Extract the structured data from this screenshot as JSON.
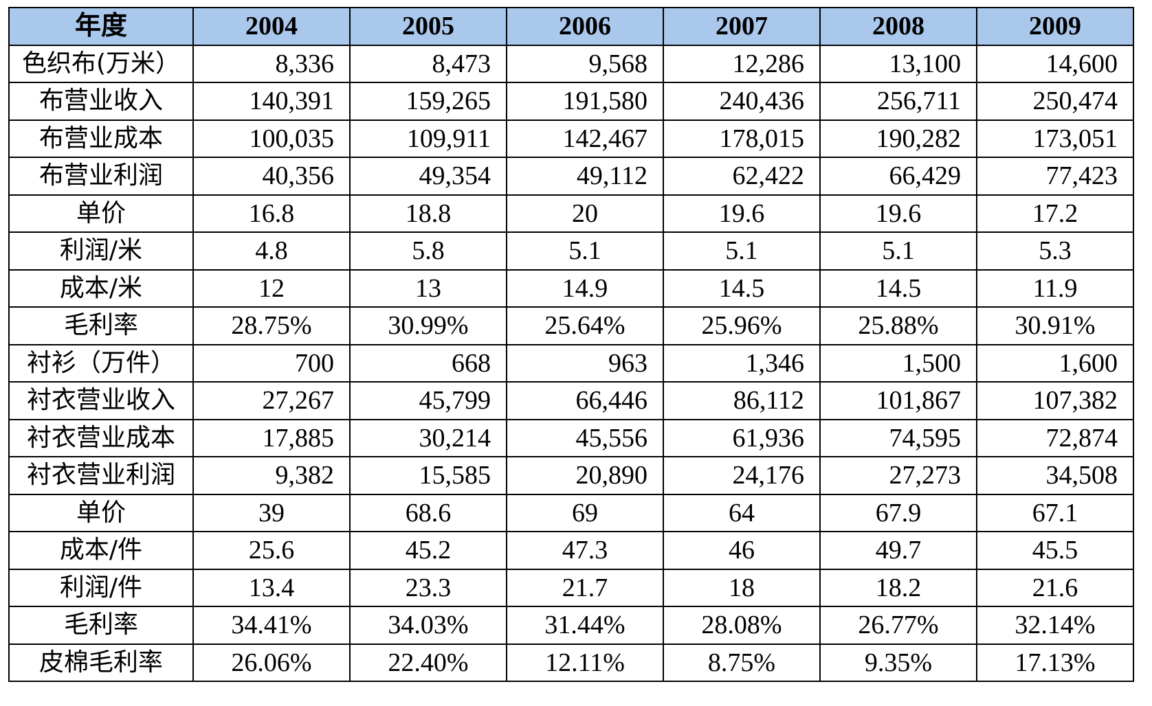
{
  "header": {
    "label": "年度",
    "years": [
      "2004",
      "2005",
      "2006",
      "2007",
      "2008",
      "2009"
    ]
  },
  "rows": [
    {
      "label": "色织布(万米）",
      "align": "num",
      "values": [
        "8,336",
        "8,473",
        "9,568",
        "12,286",
        "13,100",
        "14,600"
      ]
    },
    {
      "label": "布营业收入",
      "align": "num",
      "values": [
        "140,391",
        "159,265",
        "191,580",
        "240,436",
        "256,711",
        "250,474"
      ]
    },
    {
      "label": "布营业成本",
      "align": "num",
      "values": [
        "100,035",
        "109,911",
        "142,467",
        "178,015",
        "190,282",
        "173,051"
      ]
    },
    {
      "label": "布营业利润",
      "align": "num",
      "values": [
        "40,356",
        "49,354",
        "49,112",
        "62,422",
        "66,429",
        "77,423"
      ]
    },
    {
      "label": "单价",
      "align": "ctr",
      "values": [
        "16.8",
        "18.8",
        "20",
        "19.6",
        "19.6",
        "17.2"
      ]
    },
    {
      "label": "利润/米",
      "align": "ctr",
      "values": [
        "4.8",
        "5.8",
        "5.1",
        "5.1",
        "5.1",
        "5.3"
      ]
    },
    {
      "label": "成本/米",
      "align": "ctr",
      "values": [
        "12",
        "13",
        "14.9",
        "14.5",
        "14.5",
        "11.9"
      ]
    },
    {
      "label": "毛利率",
      "align": "ctr",
      "values": [
        "28.75%",
        "30.99%",
        "25.64%",
        "25.96%",
        "25.88%",
        "30.91%"
      ]
    },
    {
      "label": "衬衫（万件）",
      "align": "num",
      "values": [
        "700",
        "668",
        "963",
        "1,346",
        "1,500",
        "1,600"
      ]
    },
    {
      "label": "衬衣营业收入",
      "align": "num",
      "values": [
        "27,267",
        "45,799",
        "66,446",
        "86,112",
        "101,867",
        "107,382"
      ]
    },
    {
      "label": "衬衣营业成本",
      "align": "num",
      "values": [
        "17,885",
        "30,214",
        "45,556",
        "61,936",
        "74,595",
        "72,874"
      ]
    },
    {
      "label": "衬衣营业利润",
      "align": "num",
      "values": [
        "9,382",
        "15,585",
        "20,890",
        "24,176",
        "27,273",
        "34,508"
      ]
    },
    {
      "label": "单价",
      "align": "ctr",
      "values": [
        "39",
        "68.6",
        "69",
        "64",
        "67.9",
        "67.1"
      ]
    },
    {
      "label": "成本/件",
      "align": "ctr",
      "values": [
        "25.6",
        "45.2",
        "47.3",
        "46",
        "49.7",
        "45.5"
      ]
    },
    {
      "label": "利润/件",
      "align": "ctr",
      "values": [
        "13.4",
        "23.3",
        "21.7",
        "18",
        "18.2",
        "21.6"
      ]
    },
    {
      "label": "毛利率",
      "align": "ctr",
      "values": [
        "34.41%",
        "34.03%",
        "31.44%",
        "28.08%",
        "26.77%",
        "32.14%"
      ]
    },
    {
      "label": "皮棉毛利率",
      "align": "ctr",
      "values": [
        "26.06%",
        "22.40%",
        "12.11%",
        "8.75%",
        "9.35%",
        "17.13%"
      ]
    }
  ]
}
